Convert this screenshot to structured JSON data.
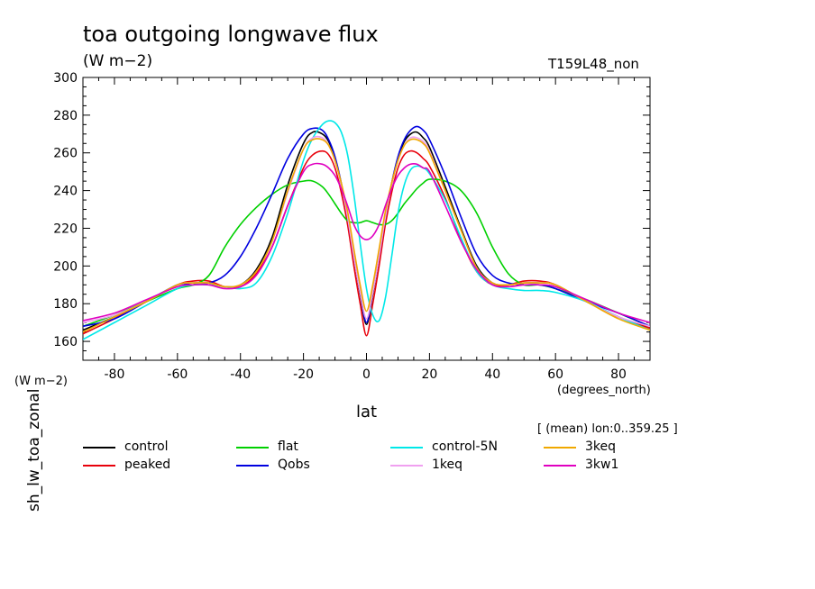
{
  "chart_data": {
    "type": "line",
    "title": "toa outgoing longwave flux",
    "units": "(W m−2)",
    "run_id": "T159L48_non",
    "ylabel": "sh_lw_toa_zonal",
    "ylabel_units": "(W m−2)",
    "xlabel": "lat",
    "xlabel_units": "(degrees_north)",
    "averaging_note": "[ (mean) lon:0..359.25 ]",
    "xlim": [
      -90,
      90
    ],
    "ylim": [
      150,
      300
    ],
    "x_ticks": [
      -80,
      -60,
      -40,
      -20,
      0,
      20,
      40,
      60,
      80
    ],
    "y_ticks": [
      160,
      180,
      200,
      220,
      240,
      260,
      280,
      300
    ],
    "x": [
      -90,
      -80,
      -70,
      -60,
      -55,
      -50,
      -45,
      -40,
      -35,
      -30,
      -25,
      -20,
      -17,
      -14,
      -12,
      -10,
      -8,
      -6,
      -4,
      -2,
      0,
      2,
      4,
      6,
      8,
      10,
      12,
      14,
      16,
      18,
      20,
      25,
      30,
      35,
      40,
      45,
      50,
      55,
      60,
      70,
      80,
      90
    ],
    "series": [
      {
        "name": "control",
        "color": "#000000",
        "values": [
          166,
          173,
          181,
          190,
          191,
          191,
          189,
          190,
          198,
          215,
          243,
          265,
          271,
          270,
          266,
          257,
          243,
          226,
          205,
          185,
          169,
          185,
          205,
          226,
          243,
          257,
          266,
          270,
          271,
          268,
          263,
          242,
          220,
          200,
          191,
          190,
          191,
          191,
          190,
          181,
          173,
          167
        ]
      },
      {
        "name": "peaked",
        "color": "#e8000b",
        "values": [
          164,
          172,
          181,
          190,
          192,
          192,
          189,
          189,
          196,
          210,
          232,
          252,
          259,
          261,
          259,
          252,
          239,
          222,
          200,
          180,
          163,
          180,
          200,
          222,
          239,
          252,
          259,
          261,
          260,
          257,
          253,
          236,
          214,
          197,
          190,
          190,
          192,
          192,
          190,
          181,
          173,
          167
        ]
      },
      {
        "name": "flat",
        "color": "#00d000",
        "values": [
          168,
          174,
          181,
          188,
          190,
          195,
          210,
          222,
          231,
          238,
          243,
          245,
          245,
          242,
          238,
          233,
          228,
          224,
          223,
          223,
          224,
          223,
          222,
          222,
          224,
          228,
          233,
          237,
          241,
          244,
          246,
          245,
          240,
          228,
          210,
          196,
          190,
          190,
          188,
          182,
          175,
          168
        ]
      },
      {
        "name": "Qobs",
        "color": "#0000e0",
        "values": [
          168,
          172,
          181,
          190,
          190,
          191,
          195,
          205,
          220,
          238,
          257,
          270,
          273,
          272,
          267,
          258,
          244,
          226,
          205,
          186,
          170,
          186,
          205,
          226,
          244,
          258,
          267,
          272,
          274,
          272,
          267,
          248,
          226,
          206,
          195,
          191,
          190,
          190,
          188,
          181,
          175,
          168
        ]
      },
      {
        "name": "control-5N",
        "color": "#00e8e8",
        "values": [
          161,
          170,
          179,
          188,
          190,
          190,
          189,
          188,
          191,
          205,
          228,
          256,
          268,
          275,
          277,
          276,
          271,
          259,
          238,
          212,
          188,
          174,
          171,
          183,
          205,
          228,
          243,
          251,
          253,
          252,
          249,
          235,
          215,
          197,
          190,
          188,
          187,
          187,
          186,
          181,
          173,
          166
        ]
      },
      {
        "name": "1keq",
        "color": "#f0a0f0",
        "values": [
          170,
          174,
          181,
          190,
          191,
          191,
          189,
          190,
          197,
          213,
          239,
          262,
          268,
          268,
          264,
          256,
          243,
          226,
          205,
          186,
          172,
          186,
          205,
          226,
          243,
          256,
          264,
          268,
          268,
          266,
          261,
          240,
          219,
          199,
          191,
          190,
          191,
          191,
          190,
          181,
          173,
          168
        ]
      },
      {
        "name": "3keq",
        "color": "#f0a800",
        "values": [
          165,
          173,
          181,
          190,
          191,
          191,
          189,
          190,
          197,
          213,
          240,
          262,
          267,
          267,
          264,
          256,
          244,
          229,
          209,
          190,
          176,
          190,
          209,
          229,
          244,
          256,
          264,
          267,
          267,
          265,
          260,
          240,
          219,
          199,
          191,
          190,
          191,
          191,
          190,
          181,
          172,
          166
        ]
      },
      {
        "name": "3kw1",
        "color": "#e000c0",
        "values": [
          171,
          175,
          182,
          189,
          190,
          190,
          188,
          189,
          195,
          210,
          232,
          250,
          254,
          254,
          252,
          248,
          241,
          232,
          222,
          216,
          214,
          216,
          222,
          232,
          241,
          248,
          252,
          254,
          254,
          252,
          250,
          232,
          213,
          198,
          190,
          189,
          190,
          190,
          189,
          182,
          175,
          170
        ]
      }
    ]
  }
}
